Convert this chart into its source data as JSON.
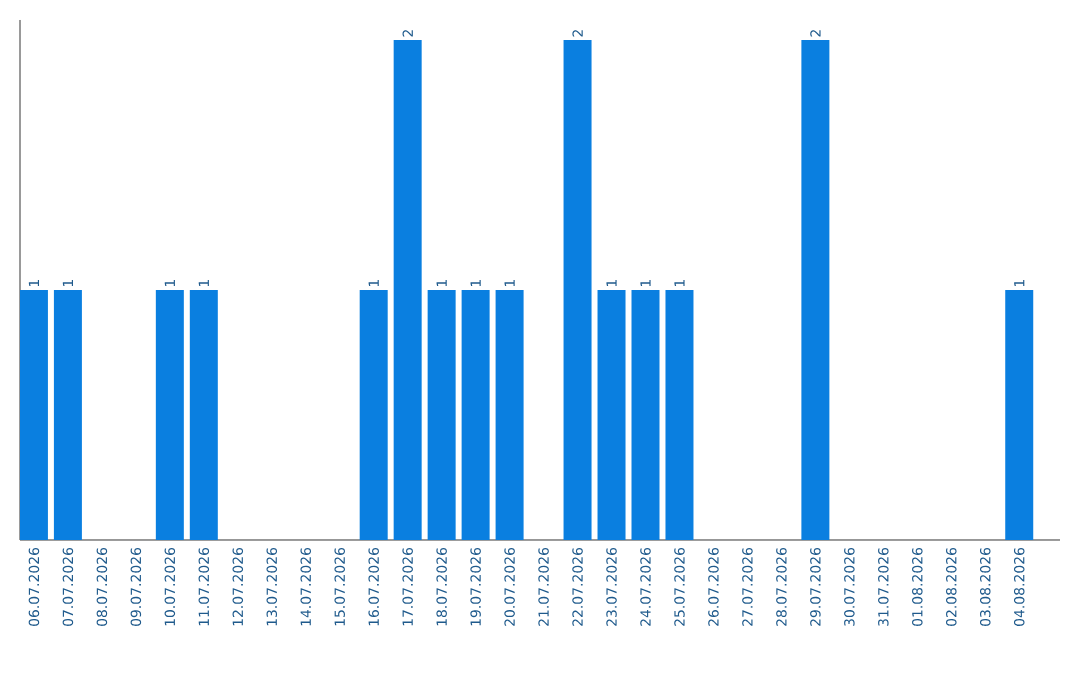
{
  "chart_data": {
    "type": "bar",
    "categories": [
      "06.07.2026",
      "07.07.2026",
      "08.07.2026",
      "09.07.2026",
      "10.07.2026",
      "11.07.2026",
      "12.07.2026",
      "13.07.2026",
      "14.07.2026",
      "15.07.2026",
      "16.07.2026",
      "17.07.2026",
      "18.07.2026",
      "19.07.2026",
      "20.07.2026",
      "21.07.2026",
      "22.07.2026",
      "23.07.2026",
      "24.07.2026",
      "25.07.2026",
      "26.07.2026",
      "27.07.2026",
      "28.07.2026",
      "29.07.2026",
      "30.07.2026",
      "31.07.2026",
      "01.08.2026",
      "02.08.2026",
      "03.08.2026",
      "04.08.2026"
    ],
    "values": [
      1,
      1,
      0,
      0,
      1,
      1,
      0,
      0,
      0,
      0,
      1,
      2,
      1,
      1,
      1,
      0,
      2,
      1,
      1,
      1,
      0,
      0,
      0,
      2,
      0,
      0,
      0,
      0,
      0,
      1
    ],
    "value_labels": [
      "1",
      "1",
      null,
      null,
      "1",
      "1",
      null,
      null,
      null,
      null,
      "1",
      "2",
      "1",
      "1",
      "1",
      null,
      "2",
      "1",
      "1",
      "1",
      null,
      null,
      null,
      "2",
      null,
      null,
      null,
      null,
      null,
      "1"
    ],
    "color": "#0a7fe0",
    "tick_labels": "x"
  }
}
